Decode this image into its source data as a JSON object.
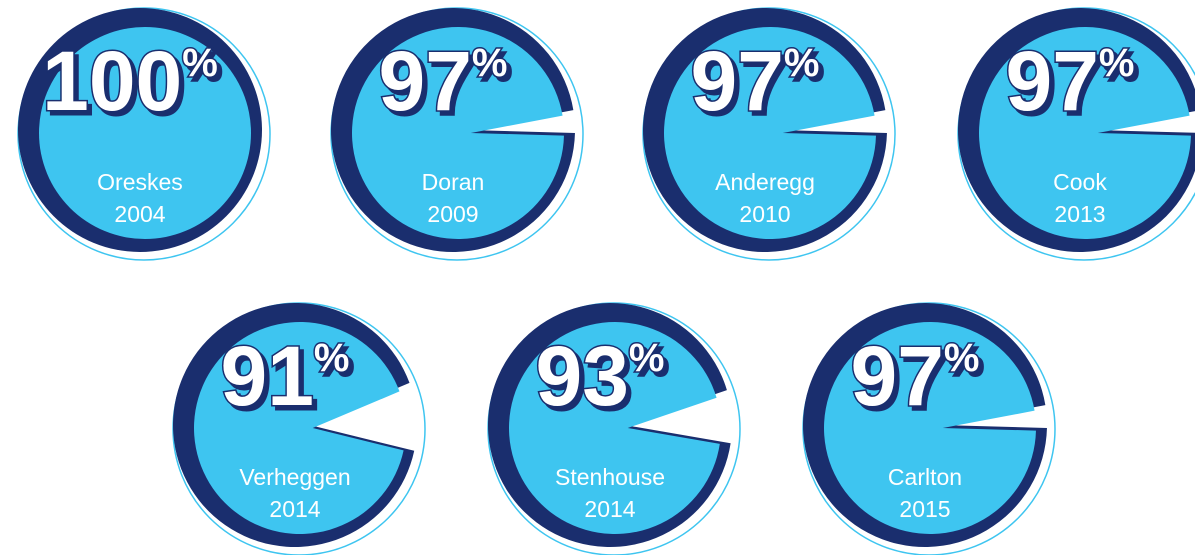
{
  "unit": "%",
  "circles": [
    {
      "value": 100,
      "name": "Oreskes",
      "year": "2004"
    },
    {
      "value": 97,
      "name": "Doran",
      "year": "2009"
    },
    {
      "value": 97,
      "name": "Anderegg",
      "year": "2010"
    },
    {
      "value": 97,
      "name": "Cook",
      "year": "2013"
    },
    {
      "value": 91,
      "name": "Verheggen",
      "year": "2014"
    },
    {
      "value": 93,
      "name": "Stenhouse",
      "year": "2014"
    },
    {
      "value": 97,
      "name": "Carlton",
      "year": "2015"
    }
  ]
}
